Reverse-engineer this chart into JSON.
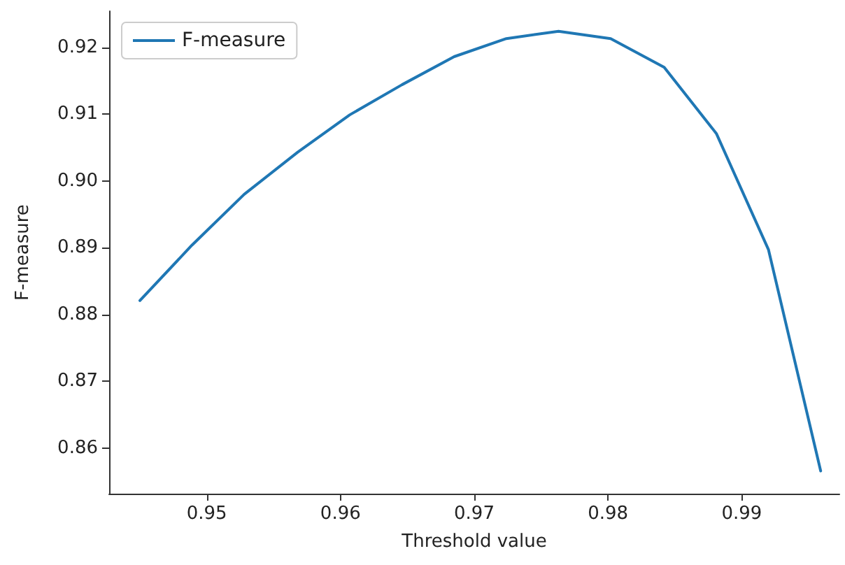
{
  "chart_data": {
    "type": "line",
    "xlabel": "Threshold value",
    "ylabel": "F-measure",
    "x": [
      0.945,
      0.9489,
      0.9528,
      0.9568,
      0.9607,
      0.9646,
      0.9685,
      0.9724,
      0.9763,
      0.9802,
      0.9842,
      0.9881,
      0.992,
      0.9959
    ],
    "series": [
      {
        "name": "F-measure",
        "color": "#1f77b4",
        "values": [
          0.8821,
          0.8904,
          0.898,
          0.9043,
          0.9099,
          0.9144,
          0.9186,
          0.9213,
          0.9224,
          0.9213,
          0.917,
          0.9071,
          0.8897,
          0.8566
        ]
      }
    ],
    "xlim": [
      0.9427,
      0.9973
    ],
    "xticks": [
      0.95,
      0.96,
      0.97,
      0.98,
      0.99
    ],
    "ylim": [
      0.8532,
      0.9254
    ],
    "yticks": [
      {
        "value": 0.86,
        "label": "0.86"
      },
      {
        "value": 0.87,
        "label": "0.87"
      },
      {
        "value": 0.88,
        "label": "0.88"
      },
      {
        "value": 0.89,
        "label": "0.89"
      },
      {
        "value": 0.9,
        "label": "0.90"
      },
      {
        "value": 0.91,
        "label": "0.91"
      },
      {
        "value": 0.92,
        "label": "0.92"
      }
    ],
    "grid": false,
    "legend": "top left",
    "marker": "none",
    "line_style": "solid"
  }
}
